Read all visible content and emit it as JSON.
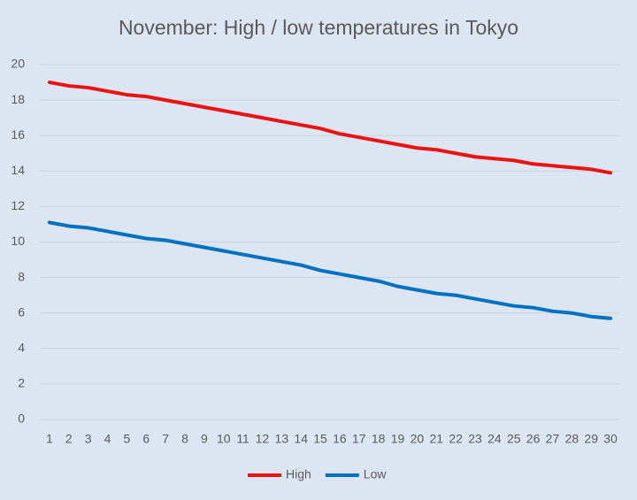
{
  "chart_data": {
    "type": "line",
    "title": "November: High / low temperatures in Tokyo",
    "categories": [
      1,
      2,
      3,
      4,
      5,
      6,
      7,
      8,
      9,
      10,
      11,
      12,
      13,
      14,
      15,
      16,
      17,
      18,
      19,
      20,
      21,
      22,
      23,
      24,
      25,
      26,
      27,
      28,
      29,
      30
    ],
    "series": [
      {
        "name": "High",
        "color": "#ee1111",
        "values": [
          19.0,
          18.8,
          18.7,
          18.5,
          18.3,
          18.2,
          18.0,
          17.8,
          17.6,
          17.4,
          17.2,
          17.0,
          16.8,
          16.6,
          16.4,
          16.1,
          15.9,
          15.7,
          15.5,
          15.3,
          15.2,
          15.0,
          14.8,
          14.7,
          14.6,
          14.4,
          14.3,
          14.2,
          14.1,
          13.9
        ]
      },
      {
        "name": "Low",
        "color": "#0070c0",
        "values": [
          11.1,
          10.9,
          10.8,
          10.6,
          10.4,
          10.2,
          10.1,
          9.9,
          9.7,
          9.5,
          9.3,
          9.1,
          8.9,
          8.7,
          8.4,
          8.2,
          8.0,
          7.8,
          7.5,
          7.3,
          7.1,
          7.0,
          6.8,
          6.6,
          6.4,
          6.3,
          6.1,
          6.0,
          5.8,
          5.7
        ]
      }
    ],
    "ylim": [
      0,
      20
    ],
    "yticks": [
      0,
      2,
      4,
      6,
      8,
      10,
      12,
      14,
      16,
      18,
      20
    ],
    "grid": true,
    "legend": "bottom"
  }
}
